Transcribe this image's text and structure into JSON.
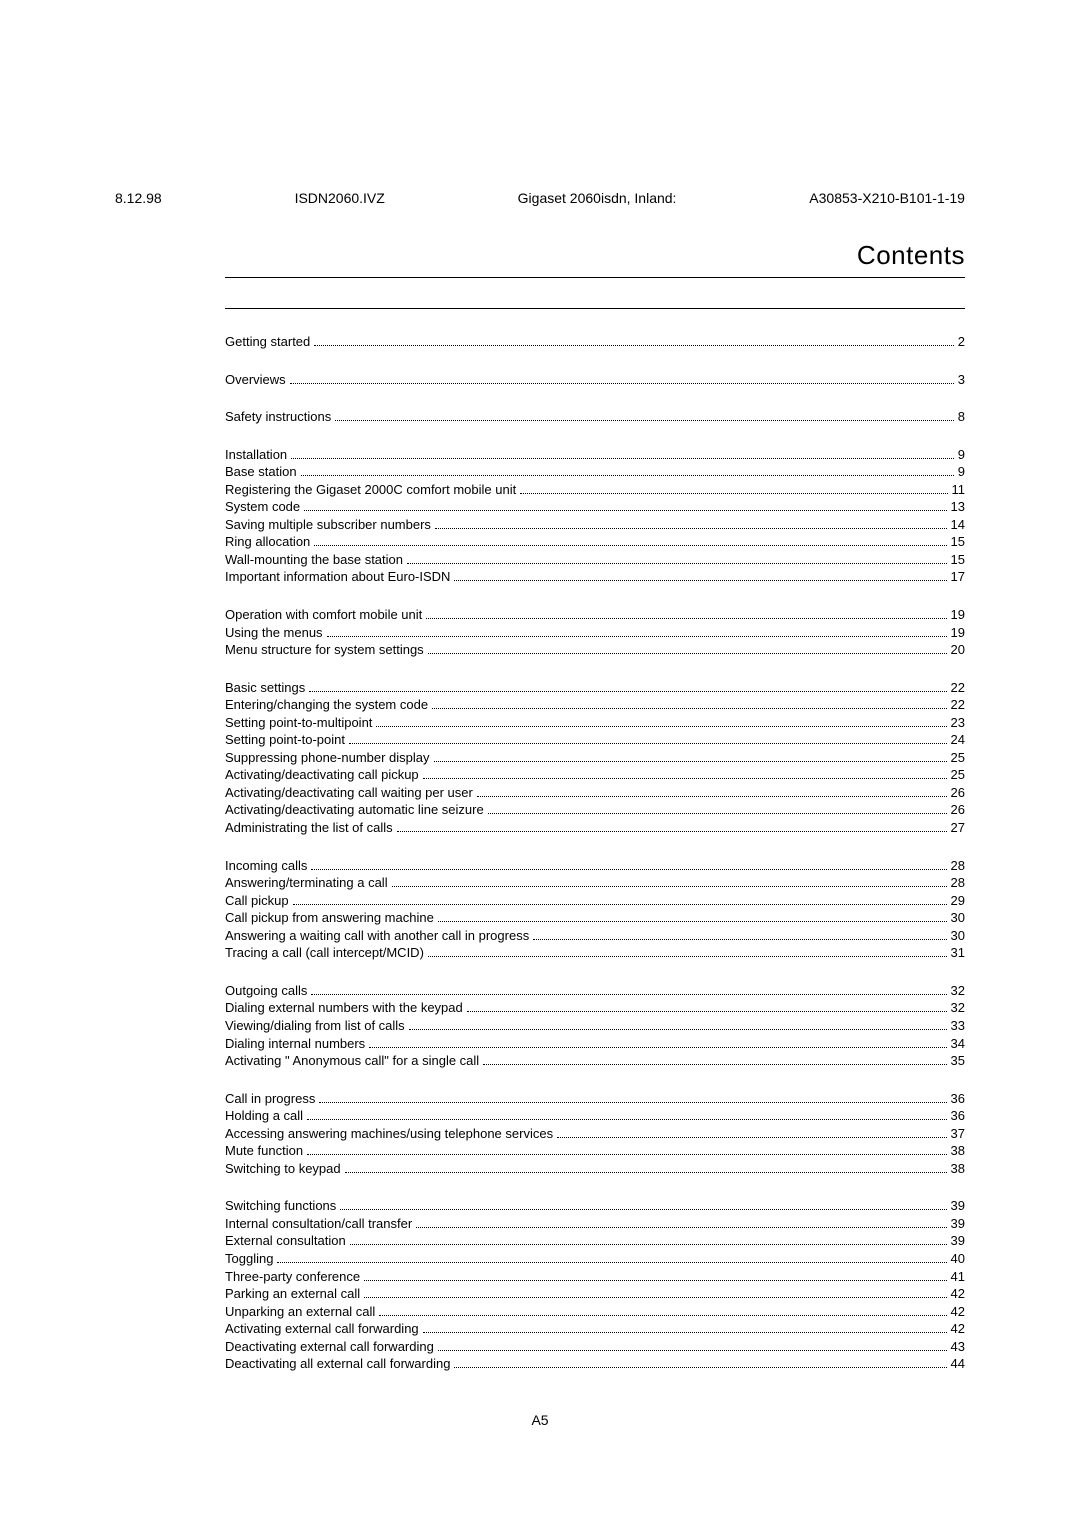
{
  "header": {
    "date": "8.12.98",
    "doc_id": "ISDN2060.IVZ",
    "product": "Gigaset 2060isdn, Inland:",
    "ref": "A30853-X210-B101-1-19"
  },
  "title": "Contents",
  "sections": [
    {
      "rows": [
        {
          "label": "Getting started",
          "page": "2"
        }
      ]
    },
    {
      "rows": [
        {
          "label": "Overviews",
          "page": "3"
        }
      ]
    },
    {
      "rows": [
        {
          "label": "Safety instructions",
          "page": "8"
        }
      ]
    },
    {
      "rows": [
        {
          "label": "Installation",
          "page": "9"
        },
        {
          "label": "Base station",
          "page": "9"
        },
        {
          "label": "Registering the Gigaset 2000C comfort mobile unit",
          "page": "11"
        },
        {
          "label": "System code",
          "page": "13"
        },
        {
          "label": "Saving multiple subscriber numbers",
          "page": "14"
        },
        {
          "label": "Ring allocation",
          "page": "15"
        },
        {
          "label": "Wall-mounting the base station",
          "page": "15"
        },
        {
          "label": "Important information about Euro-ISDN",
          "page": "17"
        }
      ]
    },
    {
      "rows": [
        {
          "label": "Operation with comfort mobile unit",
          "page": "19"
        },
        {
          "label": "Using the menus",
          "page": "19"
        },
        {
          "label": "Menu structure for system settings",
          "page": "20"
        }
      ]
    },
    {
      "rows": [
        {
          "label": "Basic settings",
          "page": "22"
        },
        {
          "label": "Entering/changing the system code",
          "page": "22"
        },
        {
          "label": "Setting point-to-multipoint",
          "page": "23"
        },
        {
          "label": "Setting point-to-point",
          "page": "24"
        },
        {
          "label": "Suppressing phone-number display",
          "page": "25"
        },
        {
          "label": "Activating/deactivating call pickup",
          "page": "25"
        },
        {
          "label": "Activating/deactivating call waiting per user",
          "page": "26"
        },
        {
          "label": "Activating/deactivating automatic line seizure",
          "page": "26"
        },
        {
          "label": "Administrating the list of calls",
          "page": "27"
        }
      ]
    },
    {
      "rows": [
        {
          "label": "Incoming calls",
          "page": "28"
        },
        {
          "label": "Answering/terminating a call",
          "page": "28"
        },
        {
          "label": "Call pickup",
          "page": "29"
        },
        {
          "label": "Call pickup from answering machine",
          "page": "30"
        },
        {
          "label": "Answering a waiting call with another call in progress",
          "page": "30"
        },
        {
          "label": "Tracing a call (call intercept/MCID)",
          "page": "31"
        }
      ]
    },
    {
      "rows": [
        {
          "label": "Outgoing calls",
          "page": "32"
        },
        {
          "label": "Dialing external numbers with the keypad",
          "page": "32"
        },
        {
          "label": "Viewing/dialing from list of calls",
          "page": "33"
        },
        {
          "label": "Dialing internal numbers",
          "page": "34"
        },
        {
          "label": "Activating \" Anonymous call\"  for a single call",
          "page": "35"
        }
      ]
    },
    {
      "rows": [
        {
          "label": "Call in progress",
          "page": "36"
        },
        {
          "label": "Holding a call",
          "page": "36"
        },
        {
          "label": "Accessing answering machines/using telephone services",
          "page": "37"
        },
        {
          "label": "Mute function",
          "page": "38"
        },
        {
          "label": "Switching to keypad",
          "page": "38"
        }
      ]
    },
    {
      "rows": [
        {
          "label": "Switching functions",
          "page": "39"
        },
        {
          "label": "Internal consultation/call transfer",
          "page": "39"
        },
        {
          "label": "External consultation",
          "page": "39"
        },
        {
          "label": "Toggling",
          "page": "40"
        },
        {
          "label": "Three-party conference",
          "page": "41"
        },
        {
          "label": "Parking an external call",
          "page": "42"
        },
        {
          "label": "Unparking an external call",
          "page": "42"
        },
        {
          "label": "Activating external call forwarding",
          "page": "42"
        },
        {
          "label": "Deactivating external call forwarding",
          "page": "43"
        },
        {
          "label": "Deactivating all external call forwarding",
          "page": "44"
        }
      ]
    }
  ],
  "footer_page": "A5"
}
